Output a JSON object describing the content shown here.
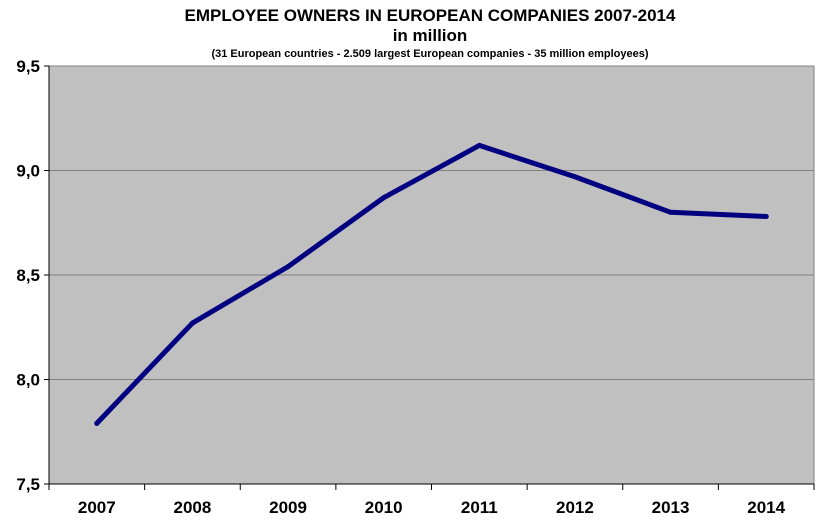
{
  "chart_data": {
    "type": "line",
    "title": "EMPLOYEE OWNERS IN EUROPEAN COMPANIES  2007-2014",
    "title_line2": "in million",
    "subtitle": "(31 European countries  - 2.509 largest European companies  - 35 million employees)",
    "xlabel": "",
    "ylabel": "",
    "categories": [
      "2007",
      "2008",
      "2009",
      "2010",
      "2011",
      "2012",
      "2013",
      "2014"
    ],
    "series": [
      {
        "values": [
          7.79,
          8.27,
          8.54,
          8.87,
          9.12,
          8.97,
          8.8,
          8.78
        ],
        "color": "#000080"
      }
    ],
    "ylim": [
      7.5,
      9.5
    ],
    "y_ticks": [
      7.5,
      8.0,
      8.5,
      9.0,
      9.5
    ],
    "y_tick_labels": [
      "7,5",
      "8,0",
      "8,5",
      "9,0",
      "9,5"
    ],
    "grid": true,
    "plot_background": "#c0c0c0",
    "gridline_color": "#808080",
    "legend": "none"
  }
}
